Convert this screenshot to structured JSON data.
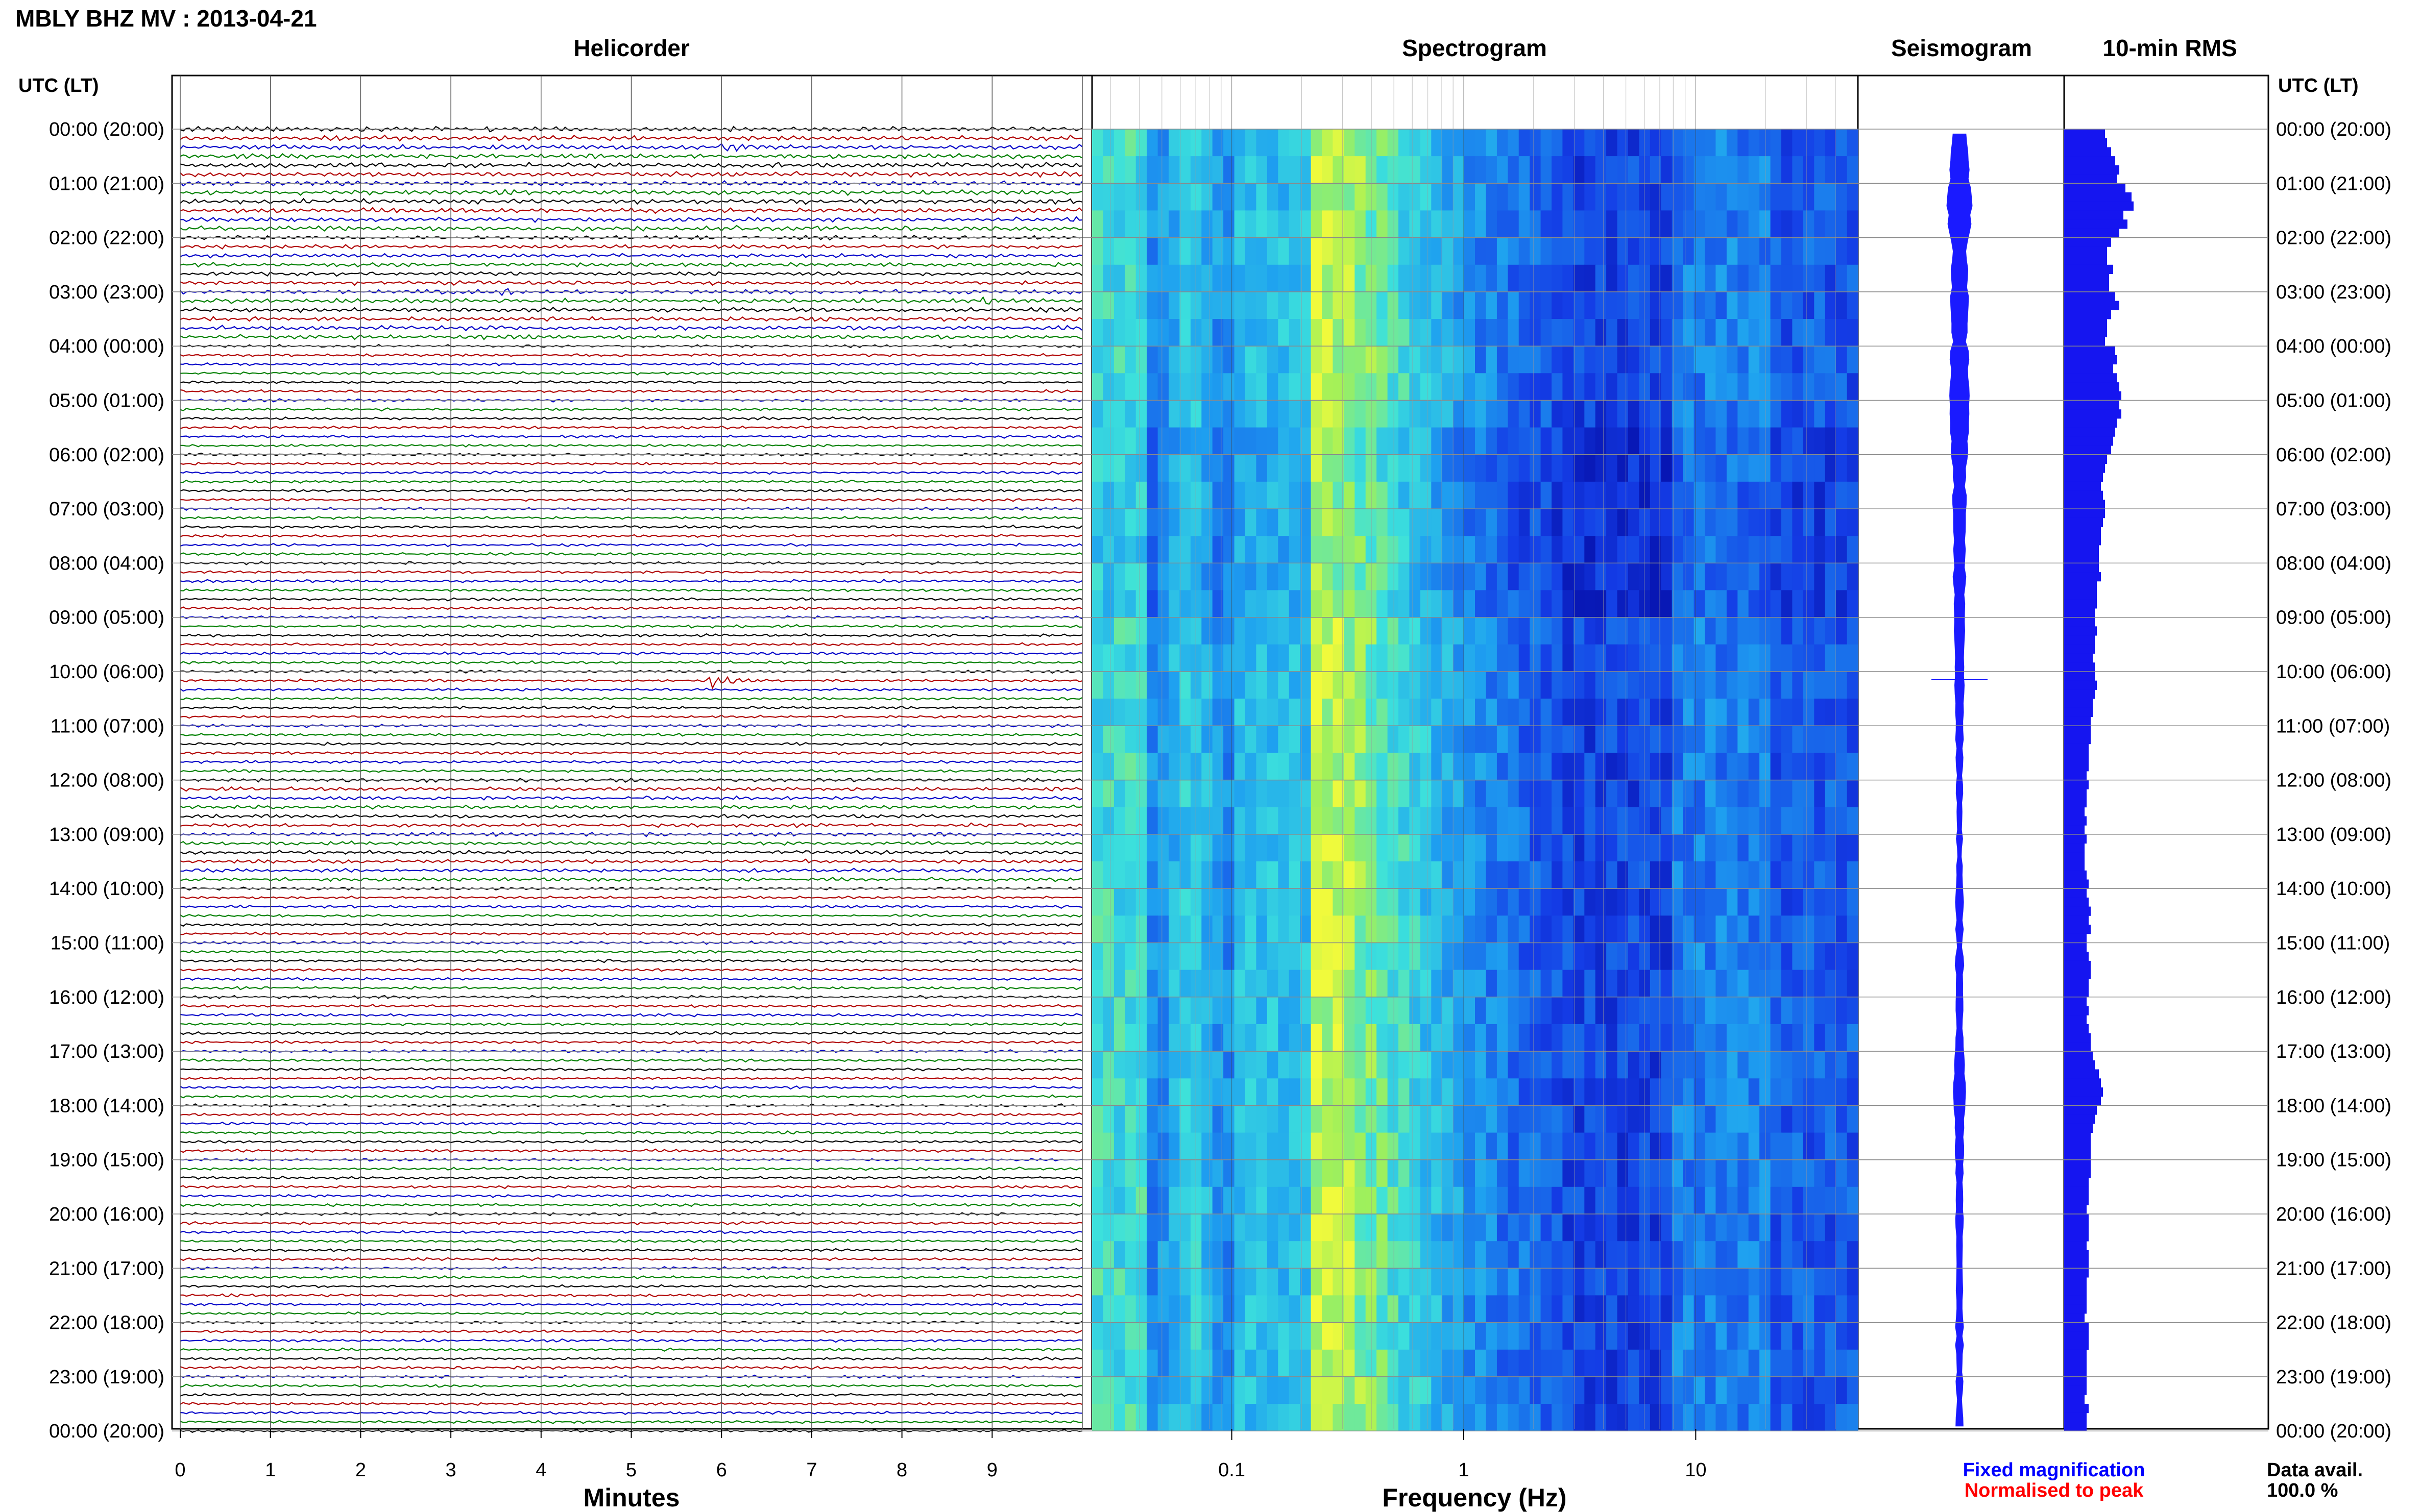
{
  "header": {
    "station": "MBLY BHZ MV : 2013-04-21",
    "utc_lt_label": "UTC (LT)"
  },
  "panels": {
    "helicorder": "Helicorder",
    "spectrogram": "Spectrogram",
    "seismogram": "Seismogram",
    "rms": "10-min RMS"
  },
  "hour_labels": [
    "00:00 (20:00)",
    "01:00 (21:00)",
    "02:00 (22:00)",
    "03:00 (23:00)",
    "04:00 (00:00)",
    "05:00 (01:00)",
    "06:00 (02:00)",
    "07:00 (03:00)",
    "08:00 (04:00)",
    "09:00 (05:00)",
    "10:00 (06:00)",
    "11:00 (07:00)",
    "12:00 (08:00)",
    "13:00 (09:00)",
    "14:00 (10:00)",
    "15:00 (11:00)",
    "16:00 (12:00)",
    "17:00 (13:00)",
    "18:00 (14:00)",
    "19:00 (15:00)",
    "20:00 (16:00)",
    "21:00 (17:00)",
    "22:00 (18:00)",
    "23:00 (19:00)",
    "00:00 (20:00)"
  ],
  "footer": {
    "fixed_magnification": "Fixed magnification",
    "normalised_to_peak": "Normalised to peak",
    "data_avail_label": "Data avail.",
    "data_avail_value": "100.0 %"
  },
  "colors": {
    "trace_cycle": [
      "#000000",
      "#b00000",
      "#0000c8",
      "#008000"
    ],
    "seismogram": "#1a1aff",
    "rms_bar": "#1515f0",
    "fixed_magnification": "#0000ff",
    "normalised_to_peak": "#ff0000"
  },
  "chart_data": [
    {
      "type": "line",
      "title": "Helicorder",
      "xlabel": "Minutes",
      "xticks": [
        "0",
        "1",
        "2",
        "3",
        "4",
        "5",
        "6",
        "7",
        "8",
        "9"
      ],
      "xlim": [
        0,
        10
      ],
      "rows_per_hour": 6,
      "rows": 144,
      "events": [
        {
          "time": "00:20",
          "minute": 6.0,
          "amplitude": "moderate"
        },
        {
          "time": "03:00",
          "minute": 3.6,
          "amplitude": "small"
        },
        {
          "time": "03:10",
          "minute": 8.9,
          "amplitude": "moderate"
        },
        {
          "time": "10:10",
          "minute": 5.9,
          "amplitude": "large"
        }
      ]
    },
    {
      "type": "heatmap",
      "title": "Spectrogram",
      "xlabel": "Frequency (Hz)",
      "xscale": "log",
      "xticks": [
        "0.1",
        "1",
        "10"
      ],
      "xlim": [
        0.025,
        50
      ],
      "colormap": "blue-cyan-yellow"
    },
    {
      "type": "area",
      "title": "Seismogram"
    },
    {
      "type": "bar",
      "title": "10-min RMS",
      "orientation": "horizontal",
      "values": [
        4.0,
        4.2,
        4.6,
        5.0,
        5.4,
        5.2,
        6.0,
        6.6,
        6.8,
        5.8,
        6.2,
        5.4,
        4.6,
        4.2,
        4.2,
        4.8,
        4.4,
        4.4,
        5.0,
        5.4,
        4.6,
        4.2,
        4.2,
        4.0,
        5.0,
        5.2,
        4.8,
        5.2,
        5.4,
        5.6,
        5.4,
        5.6,
        5.2,
        5.0,
        4.8,
        4.6,
        4.2,
        4.0,
        3.8,
        3.6,
        3.8,
        4.0,
        4.0,
        3.8,
        3.6,
        3.6,
        3.4,
        3.4,
        3.4,
        3.6,
        3.2,
        3.2,
        3.2,
        3.0,
        3.0,
        3.2,
        3.0,
        3.0,
        2.8,
        3.0,
        3.0,
        3.2,
        3.0,
        2.8,
        2.8,
        2.6,
        2.6,
        2.6,
        2.4,
        2.4,
        2.4,
        2.2,
        2.4,
        2.2,
        2.2,
        2.0,
        2.2,
        2.0,
        2.2,
        2.0,
        2.0,
        2.0,
        2.2,
        2.4,
        2.2,
        2.4,
        2.6,
        2.4,
        2.6,
        2.2,
        2.2,
        2.4,
        2.6,
        2.6,
        2.4,
        2.4,
        2.2,
        2.4,
        2.2,
        2.4,
        2.6,
        2.6,
        2.8,
        3.0,
        3.4,
        3.6,
        3.8,
        3.6,
        3.2,
        3.0,
        2.8,
        2.6,
        2.6,
        2.6,
        2.6,
        2.6,
        2.4,
        2.4,
        2.4,
        2.2,
        2.4,
        2.4,
        2.4,
        2.2,
        2.4,
        2.4,
        2.4,
        2.2,
        2.2,
        2.2,
        2.2,
        2.0,
        2.4,
        2.4,
        2.4,
        2.2,
        2.2,
        2.2,
        2.2,
        2.2,
        2.0,
        2.4,
        2.2,
        2.2
      ]
    }
  ]
}
